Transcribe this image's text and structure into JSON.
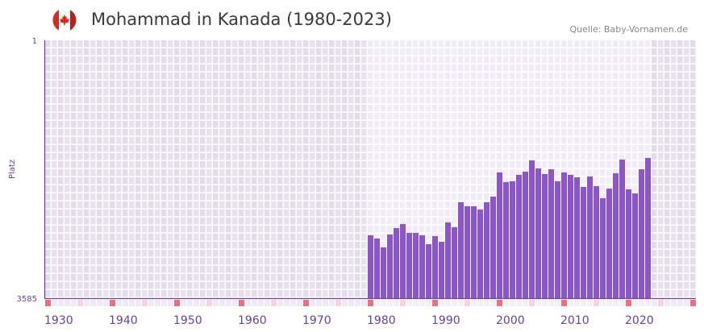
{
  "header": {
    "title": "Mohammad in Kanada (1980-2023)",
    "source": "Quelle: Baby-Vornamen.de",
    "flag_icon": "canada-flag-icon"
  },
  "colors": {
    "bar": "#8e55c8",
    "axis": "#6a3fa0",
    "bg_out": "#e3dded",
    "bg_in": "#f0ebf8",
    "decade_marker": "#e8737c",
    "half_marker": "#f5d5dd"
  },
  "chart_data": {
    "type": "bar",
    "title": "Mohammad in Kanada (1980-2023)",
    "xlabel": "",
    "ylabel": "Platz",
    "ylim": [
      3585,
      1
    ],
    "yticks": [
      "1",
      "3585"
    ],
    "xlim": [
      1930,
      2030
    ],
    "xticks": [
      "1930",
      "1940",
      "1950",
      "1960",
      "1970",
      "1980",
      "1990",
      "2000",
      "2010",
      "2020"
    ],
    "categories": [
      1980,
      1981,
      1982,
      1983,
      1984,
      1985,
      1986,
      1987,
      1988,
      1989,
      1990,
      1991,
      1992,
      1993,
      1994,
      1995,
      1996,
      1997,
      1998,
      1999,
      2000,
      2001,
      2002,
      2003,
      2004,
      2005,
      2006,
      2007,
      2008,
      2009,
      2010,
      2011,
      2012,
      2013,
      2014,
      2015,
      2016,
      2017,
      2018,
      2019,
      2020,
      2021,
      2022,
      2023
    ],
    "values": [
      2711,
      2756,
      2879,
      2700,
      2611,
      2555,
      2678,
      2678,
      2711,
      2835,
      2723,
      2801,
      2532,
      2599,
      2252,
      2308,
      2308,
      2353,
      2252,
      2174,
      1838,
      1972,
      1961,
      1871,
      1827,
      1670,
      1782,
      1860,
      1793,
      1961,
      1838,
      1871,
      1905,
      2039,
      1894,
      2028,
      2196,
      2062,
      1849,
      1659,
      2073,
      2129,
      1793,
      1636
    ]
  }
}
